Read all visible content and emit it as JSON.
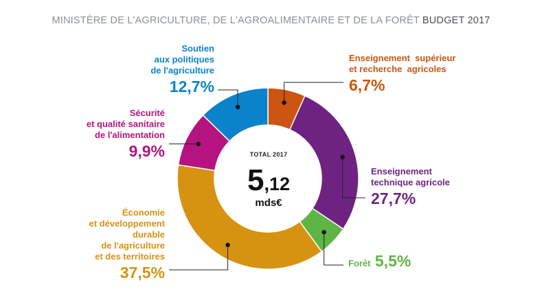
{
  "header": {
    "title_prefix": "MINISTÈRE DE L'AGRICULTURE, DE L'AGROALIMENTAIRE ET DE LA FORÊT",
    "title_suffix": "BUDGET 2017"
  },
  "center": {
    "caption": "TOTAL 2017",
    "value_int": "5",
    "value_dec": ",12",
    "unit": "mds€"
  },
  "chart_data": {
    "type": "pie",
    "donut": true,
    "total_label": "TOTAL 2017",
    "total": "5,12 mds€",
    "slices": [
      {
        "label": "Enseignement supérieur et recherche agricoles",
        "value": 6.7,
        "display": "6,7%",
        "color": "#cc5511"
      },
      {
        "label": "Enseignement technique agricole",
        "value": 27.7,
        "display": "27,7%",
        "color": "#6e2381"
      },
      {
        "label": "Forêt",
        "value": 5.5,
        "display": "5,5%",
        "color": "#5fb446"
      },
      {
        "label": "Économie et développement durable de l'agriculture et des territoires",
        "value": 37.5,
        "display": "37,5%",
        "color": "#d69211"
      },
      {
        "label": "Sécurité et qualité sanitaire de l'alimentation",
        "value": 9.9,
        "display": "9,9%",
        "color": "#b5137f"
      },
      {
        "label": "Soutien aux politiques de l'agriculture",
        "value": 12.7,
        "display": "12,7%",
        "color": "#0a83cb"
      }
    ]
  },
  "labels": [
    {
      "lines": [
        "Enseignement  supérieur",
        "et recherche  agricoles"
      ],
      "pct": "6,7%"
    },
    {
      "lines": [
        "Enseignement",
        "technique agricole"
      ],
      "pct": "27,7%"
    },
    {
      "lines": [
        "Forêt"
      ],
      "pct": "5,5%"
    },
    {
      "lines": [
        "Économie",
        "et développement",
        "durable",
        "de l'agriculture",
        "et des territoires"
      ],
      "pct": "37,5%"
    },
    {
      "lines": [
        "Sécurité",
        "et qualité sanitaire",
        "de l'alimentation"
      ],
      "pct": "9,9%"
    },
    {
      "lines": [
        "Soutien",
        "aux politiques",
        "de l'agriculture"
      ],
      "pct": "12,7%"
    }
  ]
}
